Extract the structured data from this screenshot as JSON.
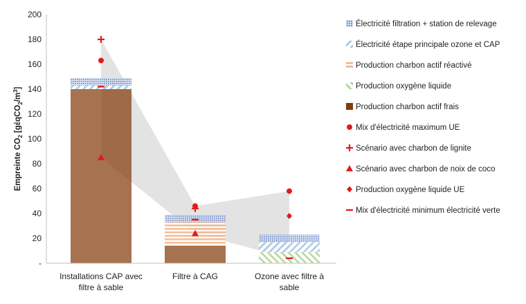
{
  "chart_data": {
    "type": "bar",
    "stacked": true,
    "title": "",
    "ylabel": "Empreinte CO2 [gέqCO2/m3]",
    "ylabel_parts": {
      "prefix": "Empreinte CO",
      "sub1": "2",
      "mid": " [gέqCO",
      "sub2": "2",
      "slash": "/m",
      "sup": "3",
      "suffix": "]"
    },
    "ylim": [
      0,
      200
    ],
    "yticks": [
      "-",
      "20",
      "40",
      "60",
      "80",
      "100",
      "120",
      "140",
      "160",
      "180",
      "200"
    ],
    "grid": false,
    "legend_position": "right",
    "categories": [
      "Installations CAP avec filtre à sable",
      "Filtre à CAG",
      "Ozone avec filtre à sable"
    ],
    "category_lines": [
      [
        "Installations CAP avec",
        "filtre à sable"
      ],
      [
        "Filtre à CAG"
      ],
      [
        "Ozone avec filtre à",
        "sable"
      ]
    ],
    "series": [
      {
        "name": "Production charbon actif frais",
        "color": "#843c0c",
        "pattern": "solid",
        "values": [
          140,
          14,
          0
        ]
      },
      {
        "name": "Production oxygène liquide",
        "color": "#a9d18e",
        "pattern": "diag-down",
        "values": [
          0,
          0,
          9
        ]
      },
      {
        "name": "Production charbon actif réactivé",
        "color": "#f4b183",
        "pattern": "horizontal",
        "values": [
          0,
          19,
          0
        ]
      },
      {
        "name": "Électricité étape principale ozone et CAP",
        "color": "#9dc3e6",
        "pattern": "diag-up",
        "values": [
          3,
          0,
          8
        ]
      },
      {
        "name": "Électricité filtration + station de relevage",
        "color": "#8faadc",
        "pattern": "dots",
        "values": [
          6,
          6,
          6
        ]
      }
    ],
    "scenarios": [
      {
        "name": "Mix d'électricité maximum UE",
        "marker": "circle",
        "values": [
          163,
          46,
          58
        ]
      },
      {
        "name": "Scénario avec charbon de lignite",
        "marker": "plus",
        "values": [
          180,
          44,
          null
        ]
      },
      {
        "name": "Scénario avec charbon de noix de coco",
        "marker": "triangle",
        "values": [
          85,
          24,
          null
        ]
      },
      {
        "name": "Production oxygène liquide UE",
        "marker": "diamond",
        "values": [
          null,
          null,
          38
        ]
      },
      {
        "name": "Mix d'électricité minimum électricité verte",
        "marker": "dash",
        "values": [
          142,
          35,
          4
        ]
      }
    ],
    "legend_order": [
      "Électricité filtration + station de relevage",
      "Électricité étape principale ozone et CAP",
      "Production charbon actif réactivé",
      "Production oxygène liquide",
      "Production charbon actif frais",
      "Mix d'électricité maximum UE",
      "Scénario avec charbon de lignite",
      "Scénario avec charbon de noix de coco",
      "Production oxygène liquide UE",
      "Mix d'électricité minimum électricité verte"
    ],
    "range_band": {
      "upper": [
        180,
        46,
        58
      ],
      "lower": [
        85,
        24,
        4
      ]
    },
    "colors": {
      "marker": "#e21a1a",
      "band": "#d9d9d9",
      "axis": "#bfbfbf"
    }
  }
}
